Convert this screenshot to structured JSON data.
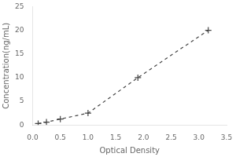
{
  "chart_data": {
    "type": "line",
    "xlabel": "Optical Density",
    "ylabel": "Concentration(ng/mL)",
    "x": [
      0.1,
      0.25,
      0.5,
      1.0,
      1.9,
      3.17
    ],
    "values": [
      0.3,
      0.6,
      1.25,
      2.5,
      10.0,
      20.0
    ],
    "xlim": [
      0,
      3.5
    ],
    "ylim": [
      0,
      25
    ],
    "xticks": [
      {
        "value": 0,
        "label": "0.0"
      },
      {
        "value": 0.5,
        "label": "0.5"
      },
      {
        "value": 1.0,
        "label": "1.0"
      },
      {
        "value": 1.5,
        "label": "1.5"
      },
      {
        "value": 2.0,
        "label": "2.0"
      },
      {
        "value": 2.5,
        "label": "2.5"
      },
      {
        "value": 3.0,
        "label": "3.0"
      },
      {
        "value": 3.5,
        "label": "3.5"
      }
    ],
    "yticks": [
      0,
      5,
      10,
      15,
      20,
      25
    ],
    "grid": false,
    "color": "#444444",
    "marker": "plus",
    "line_style": "dashed"
  }
}
